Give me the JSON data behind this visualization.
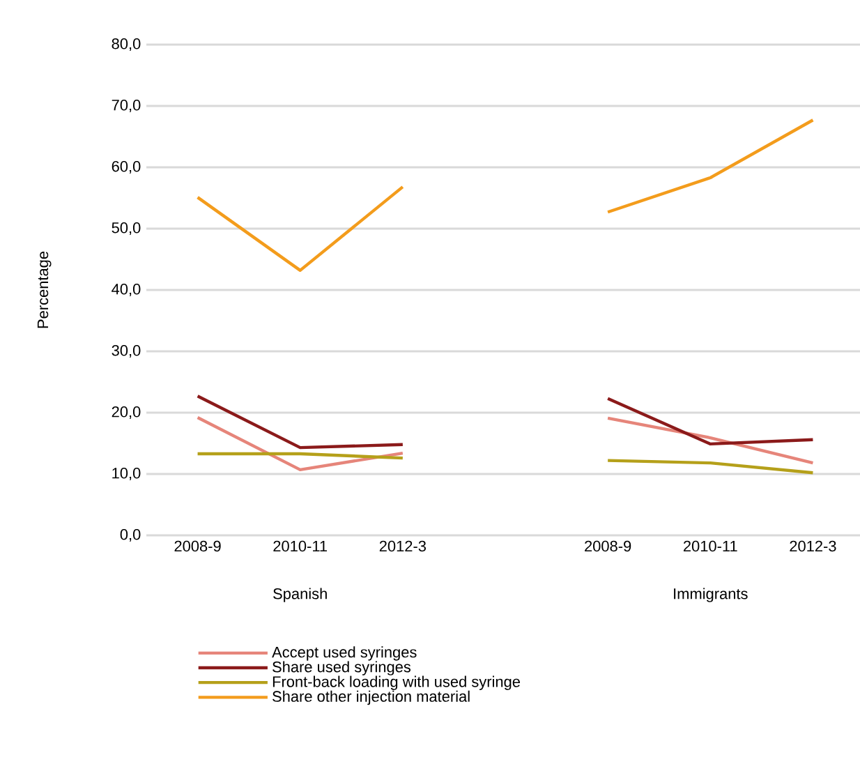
{
  "chart_data": {
    "type": "line",
    "ylabel": "Percentage",
    "categories": [
      "2008-9",
      "2010-11",
      "2012-3",
      null,
      "2008-9",
      "2010-11",
      "2012-3"
    ],
    "annotations": [
      "Spanish",
      "Immigrants"
    ],
    "series": [
      {
        "name": "Accept used syringes",
        "color": "#e6857a",
        "values": [
          19.2,
          10.7,
          13.4,
          null,
          19.1,
          15.9,
          11.8
        ]
      },
      {
        "name": "Share used syringes",
        "color": "#8b1a1a",
        "values": [
          22.7,
          14.3,
          14.8,
          null,
          22.3,
          14.9,
          15.6
        ]
      },
      {
        "name": "Front-back loading with used syringe",
        "color": "#b5a01a",
        "values": [
          13.3,
          13.3,
          12.6,
          null,
          12.2,
          11.8,
          10.2
        ]
      },
      {
        "name": "Share other injection material",
        "color": "#f39c1c",
        "values": [
          55.1,
          43.2,
          56.8,
          null,
          52.7,
          58.3,
          67.7
        ]
      }
    ],
    "ylim": [
      0,
      80
    ],
    "yticks": [
      {
        "value": 0,
        "label": "0,0"
      },
      {
        "value": 10,
        "label": "10,0"
      },
      {
        "value": 20,
        "label": "20,0"
      },
      {
        "value": 30,
        "label": "30,0"
      },
      {
        "value": 40,
        "label": "40,0"
      },
      {
        "value": 50,
        "label": "50,0"
      },
      {
        "value": 60,
        "label": "60,0"
      },
      {
        "value": 70,
        "label": "70,0"
      },
      {
        "value": 80,
        "label": "80,0"
      }
    ],
    "grid": "y",
    "legend": "bottom",
    "marker": "none",
    "line_style": "solid"
  }
}
